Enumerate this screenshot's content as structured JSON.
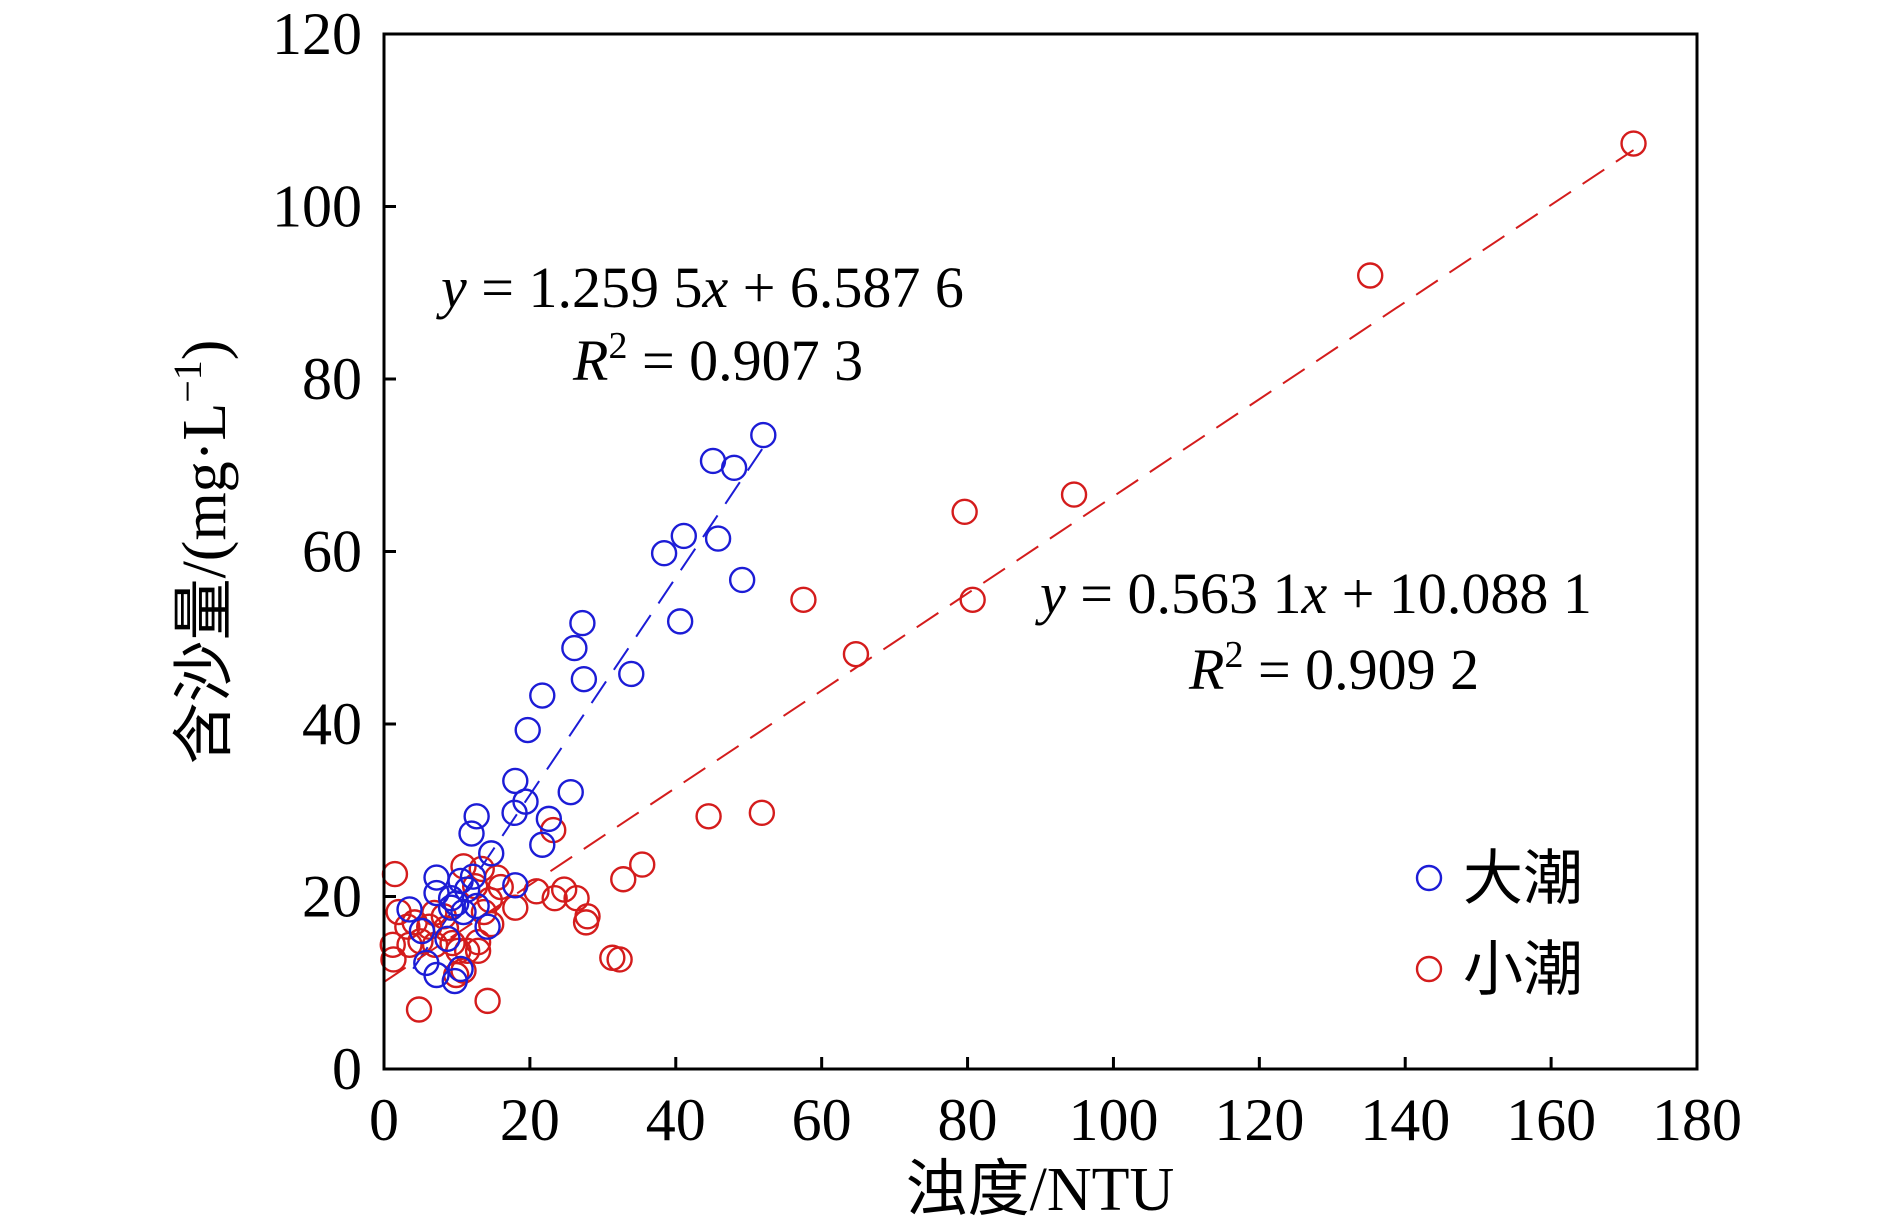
{
  "chart_data": {
    "type": "scatter",
    "xlabel": "浊度/NTU",
    "ylabel": {
      "main": "含沙量/(mg·L",
      "sup": "−1",
      "close": ")"
    },
    "xlim": [
      0,
      180
    ],
    "ylim": [
      0,
      120
    ],
    "xticks": [
      "0",
      "20",
      "40",
      "60",
      "80",
      "100",
      "120",
      "140",
      "160",
      "180"
    ],
    "yticks": [
      "0",
      "20",
      "40",
      "60",
      "80",
      "100",
      "120"
    ],
    "grid": false,
    "legend": {
      "position": "bottom-right"
    },
    "series": [
      {
        "name": "大潮",
        "color": "#1c1cd6",
        "marker": "open-circle",
        "points": [
          [
            52.0,
            73.5
          ],
          [
            45.1,
            70.5
          ],
          [
            48.0,
            69.7
          ],
          [
            41.1,
            61.8
          ],
          [
            45.8,
            61.5
          ],
          [
            38.4,
            59.8
          ],
          [
            49.1,
            56.7
          ],
          [
            40.6,
            51.9
          ],
          [
            27.2,
            51.7
          ],
          [
            26.1,
            48.8
          ],
          [
            33.9,
            45.8
          ],
          [
            27.4,
            45.2
          ],
          [
            21.7,
            43.3
          ],
          [
            19.7,
            39.3
          ],
          [
            18.0,
            33.4
          ],
          [
            25.6,
            32.1
          ],
          [
            19.4,
            31.0
          ],
          [
            17.9,
            29.7
          ],
          [
            12.7,
            29.3
          ],
          [
            22.6,
            29.0
          ],
          [
            12.0,
            27.3
          ],
          [
            14.7,
            25.0
          ],
          [
            21.7,
            26.0
          ],
          [
            12.2,
            22.3
          ],
          [
            7.2,
            22.2
          ],
          [
            18.0,
            21.3
          ],
          [
            10.5,
            21.8
          ],
          [
            11.4,
            20.8
          ],
          [
            7.2,
            20.4
          ],
          [
            9.2,
            19.8
          ],
          [
            9.9,
            19.2
          ],
          [
            9.2,
            18.7
          ],
          [
            10.9,
            18.2
          ],
          [
            3.5,
            18.5
          ],
          [
            5.2,
            16.0
          ],
          [
            8.7,
            15.1
          ],
          [
            5.8,
            12.3
          ],
          [
            7.2,
            10.9
          ],
          [
            9.7,
            10.2
          ],
          [
            10.5,
            11.6
          ],
          [
            12.7,
            18.9
          ],
          [
            14.2,
            16.5
          ]
        ]
      },
      {
        "name": "小潮",
        "color": "#d41c1c",
        "marker": "open-circle",
        "points": [
          [
            171.3,
            107.3
          ],
          [
            135.2,
            92.0
          ],
          [
            94.6,
            66.6
          ],
          [
            79.6,
            64.6
          ],
          [
            80.7,
            54.4
          ],
          [
            57.5,
            54.4
          ],
          [
            64.7,
            48.1
          ],
          [
            44.5,
            29.3
          ],
          [
            51.8,
            29.7
          ],
          [
            23.2,
            27.7
          ],
          [
            35.4,
            23.7
          ],
          [
            32.8,
            22.0
          ],
          [
            1.5,
            22.6
          ],
          [
            24.7,
            20.8
          ],
          [
            26.4,
            19.8
          ],
          [
            20.9,
            20.6
          ],
          [
            23.4,
            19.8
          ],
          [
            27.9,
            17.7
          ],
          [
            27.7,
            17.0
          ],
          [
            18.0,
            18.7
          ],
          [
            16.0,
            21.1
          ],
          [
            15.5,
            22.2
          ],
          [
            13.4,
            23.2
          ],
          [
            10.9,
            23.5
          ],
          [
            12.5,
            21.2
          ],
          [
            14.5,
            19.6
          ],
          [
            13.7,
            18.2
          ],
          [
            2.0,
            18.2
          ],
          [
            3.2,
            16.5
          ],
          [
            4.2,
            17.0
          ],
          [
            6.2,
            16.5
          ],
          [
            1.2,
            14.4
          ],
          [
            1.3,
            12.7
          ],
          [
            3.5,
            14.4
          ],
          [
            5.0,
            14.8
          ],
          [
            7.0,
            14.4
          ],
          [
            8.5,
            16.3
          ],
          [
            9.4,
            14.6
          ],
          [
            10.2,
            13.7
          ],
          [
            11.4,
            13.7
          ],
          [
            12.9,
            14.7
          ],
          [
            10.9,
            11.4
          ],
          [
            9.9,
            10.9
          ],
          [
            12.9,
            13.7
          ],
          [
            14.7,
            16.8
          ],
          [
            31.3,
            12.9
          ],
          [
            32.3,
            12.7
          ],
          [
            4.8,
            6.9
          ],
          [
            14.2,
            7.9
          ],
          [
            6.9,
            18.1
          ],
          [
            8.2,
            17.7
          ]
        ]
      }
    ],
    "fit_lines": [
      {
        "series": "大潮",
        "slope": 1.2595,
        "intercept": 6.5876,
        "x_range": [
          4,
          52
        ],
        "style": "dashed",
        "equation_parts": [
          "y",
          " = 1.259 5",
          "x",
          " + 6.587 6"
        ],
        "r2_parts": [
          "R",
          "2",
          " = 0.907 3"
        ]
      },
      {
        "series": "小潮",
        "slope": 0.5631,
        "intercept": 10.0881,
        "x_range": [
          0,
          171.3
        ],
        "style": "dashed",
        "equation_parts": [
          "y",
          " = 0.563 1",
          "x",
          " + 10.088 1"
        ],
        "r2_parts": [
          "R",
          "2",
          " = 0.909 2"
        ]
      }
    ]
  }
}
